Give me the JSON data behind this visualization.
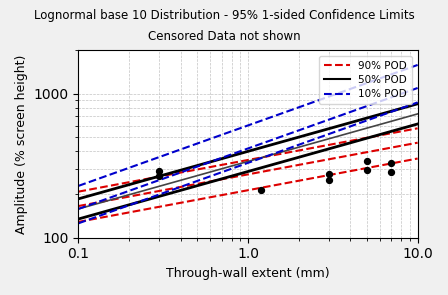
{
  "title_line1": "Lognormal base 10 Distribution - 95% 1-sided Confidence Limits",
  "title_line2": "Censored Data not shown",
  "xlabel": "Through-wall extent (mm)",
  "ylabel": "Amplitude (% screen height)",
  "xlim": [
    0.1,
    10.0
  ],
  "ylim": [
    100,
    2000
  ],
  "background_color": "#f0f0f0",
  "plot_bg_color": "#ffffff",
  "scatter_x": [
    0.3,
    0.3,
    1.2,
    3.0,
    3.0,
    5.0,
    5.0,
    7.0,
    7.0
  ],
  "scatter_y": [
    290,
    270,
    215,
    250,
    275,
    295,
    340,
    285,
    330
  ],
  "x_range": [
    0.1,
    10.0
  ],
  "pod50_slope": 0.38,
  "pod50_intercept_log": 2.48,
  "lines": {
    "pod90_mid": {
      "slope": 0.22,
      "intercept": 2.44,
      "color": "#dd0000",
      "ls": "--",
      "lw": 1.5
    },
    "pod90_upper": {
      "slope": 0.22,
      "intercept": 2.54,
      "color": "#dd0000",
      "ls": "--",
      "lw": 1.5
    },
    "pod90_lower": {
      "slope": 0.22,
      "intercept": 2.33,
      "color": "#dd0000",
      "ls": "--",
      "lw": 1.5
    },
    "pod50_lower": {
      "slope": 0.33,
      "intercept": 2.46,
      "color": "#000000",
      "ls": "-",
      "lw": 2.0
    },
    "pod50_upper": {
      "slope": 0.33,
      "intercept": 2.6,
      "color": "#000000",
      "ls": "-",
      "lw": 2.0
    },
    "pod50_mid": {
      "slope": 0.33,
      "intercept": 2.53,
      "color": "#444444",
      "ls": "-",
      "lw": 1.2
    },
    "pod10_mid": {
      "slope": 0.42,
      "intercept": 2.62,
      "color": "#0000cc",
      "ls": "--",
      "lw": 1.5
    },
    "pod10_upper": {
      "slope": 0.42,
      "intercept": 2.78,
      "color": "#0000cc",
      "ls": "--",
      "lw": 1.5
    },
    "pod10_lower": {
      "slope": 0.42,
      "intercept": 2.52,
      "color": "#0000cc",
      "ls": "--",
      "lw": 1.5
    }
  },
  "legend": [
    {
      "label": "90% POD",
      "color": "#dd0000",
      "ls": "--"
    },
    {
      "label": "50% POD",
      "color": "#000000",
      "ls": "-"
    },
    {
      "label": "10% POD",
      "color": "#0000cc",
      "ls": "--"
    }
  ]
}
